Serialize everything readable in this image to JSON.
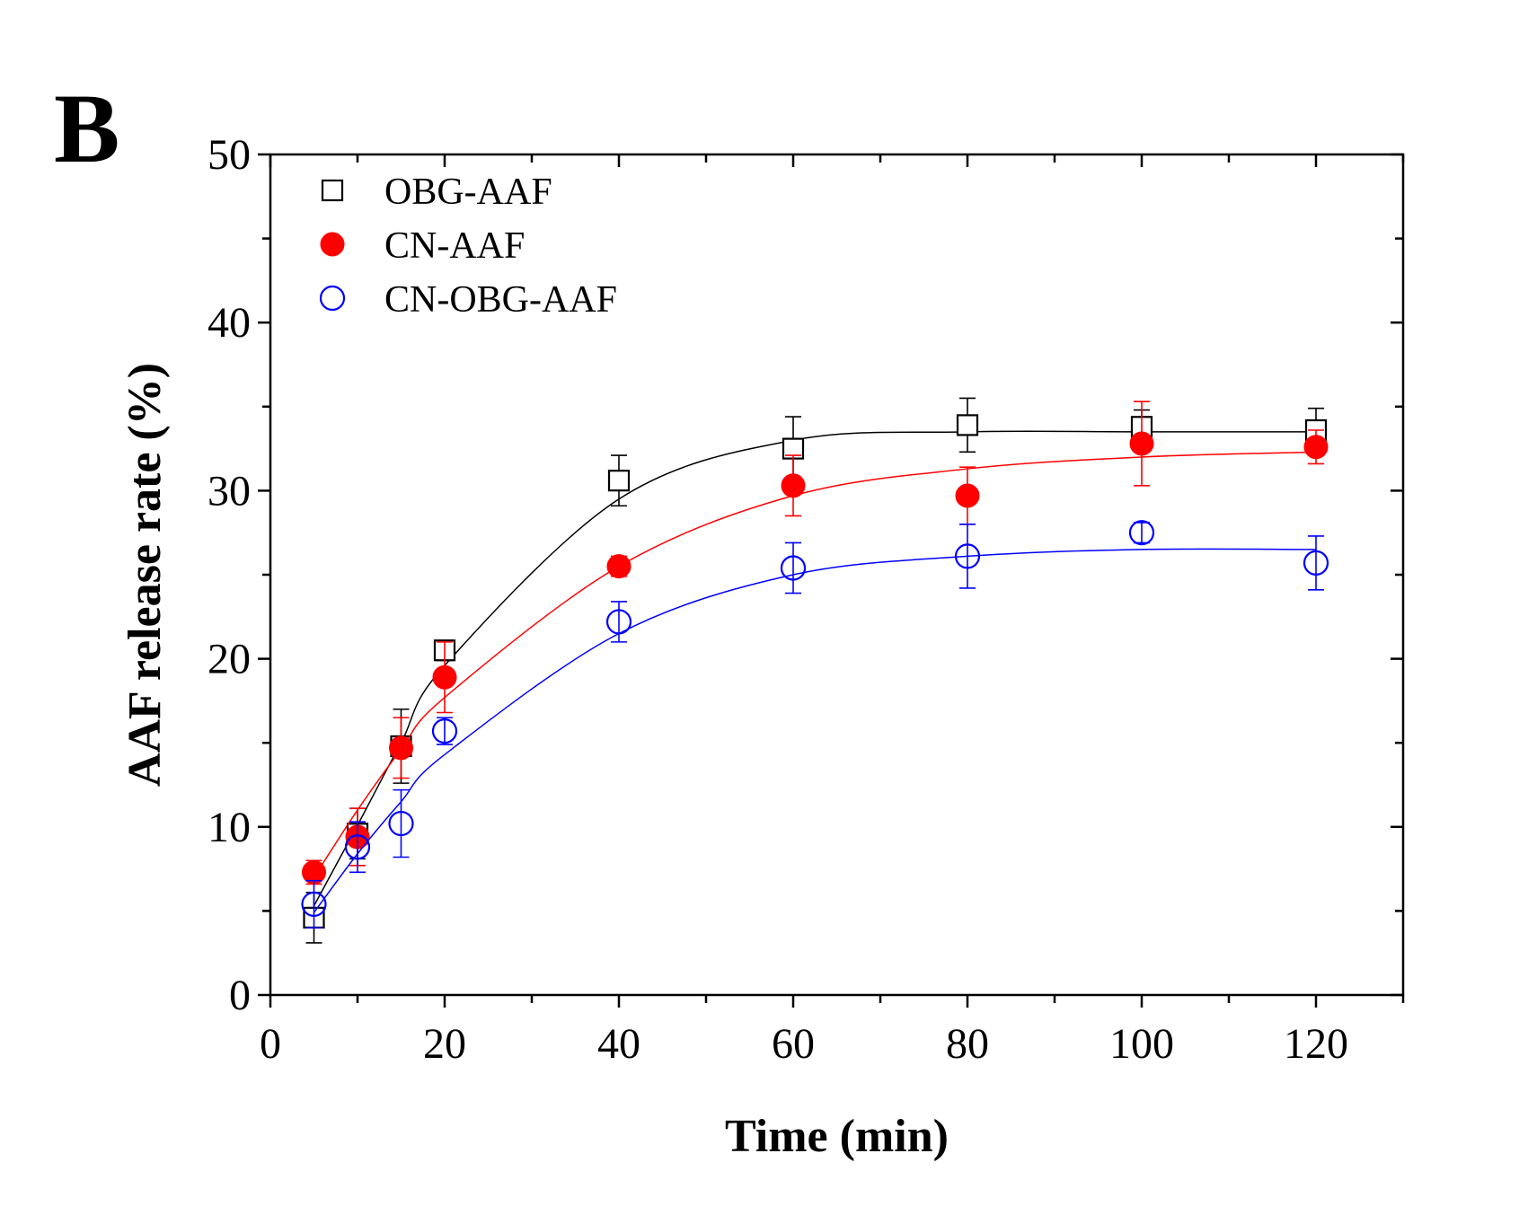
{
  "panel_label": "B",
  "chart_data": {
    "type": "scatter",
    "xlabel": "Time (min)",
    "ylabel": "AAF release rate (%)",
    "xlim": [
      0,
      130
    ],
    "ylim": [
      0,
      50
    ],
    "xticks": [
      0,
      20,
      40,
      60,
      80,
      100,
      120
    ],
    "yticks": [
      0,
      10,
      20,
      30,
      40,
      50
    ],
    "legend_position": "top-left",
    "grid": false,
    "series": [
      {
        "name": "OBG-AAF",
        "marker": "open-square",
        "color": "#000000",
        "x": [
          5,
          10,
          15,
          20,
          40,
          60,
          80,
          100,
          120
        ],
        "y": [
          4.6,
          9.6,
          14.8,
          20.5,
          30.6,
          32.5,
          33.9,
          33.8,
          33.6
        ],
        "error": [
          1.5,
          1.5,
          2.2,
          0.6,
          1.5,
          1.9,
          1.6,
          1.0,
          1.3
        ],
        "fit_y": [
          5.3,
          10.1,
          15.0,
          19.6,
          29.5,
          33.0,
          33.5,
          33.5,
          33.5
        ]
      },
      {
        "name": "CN-AAF",
        "marker": "filled-circle",
        "color": "#ff0000",
        "x": [
          5,
          10,
          15,
          20,
          40,
          60,
          80,
          100,
          120
        ],
        "y": [
          7.3,
          9.4,
          14.7,
          18.9,
          25.5,
          30.3,
          29.7,
          32.8,
          32.6
        ],
        "error": [
          0.7,
          1.7,
          1.8,
          2.1,
          0.6,
          1.8,
          1.7,
          2.5,
          1.0
        ],
        "fit_y": [
          7.0,
          11.0,
          14.6,
          17.7,
          25.5,
          29.7,
          31.3,
          32.0,
          32.3
        ]
      },
      {
        "name": "CN-OBG-AAF",
        "marker": "open-circle",
        "color": "#0000ff",
        "x": [
          5,
          10,
          15,
          20,
          40,
          60,
          80,
          100,
          120
        ],
        "y": [
          5.4,
          8.8,
          10.2,
          15.7,
          22.2,
          25.4,
          26.1,
          27.5,
          25.7
        ],
        "error": [
          1.4,
          1.5,
          2.0,
          0.8,
          1.2,
          1.5,
          1.9,
          0.6,
          1.6
        ],
        "fit_y": [
          4.9,
          8.4,
          11.5,
          14.3,
          21.5,
          25.0,
          26.1,
          26.5,
          26.5
        ]
      }
    ]
  }
}
